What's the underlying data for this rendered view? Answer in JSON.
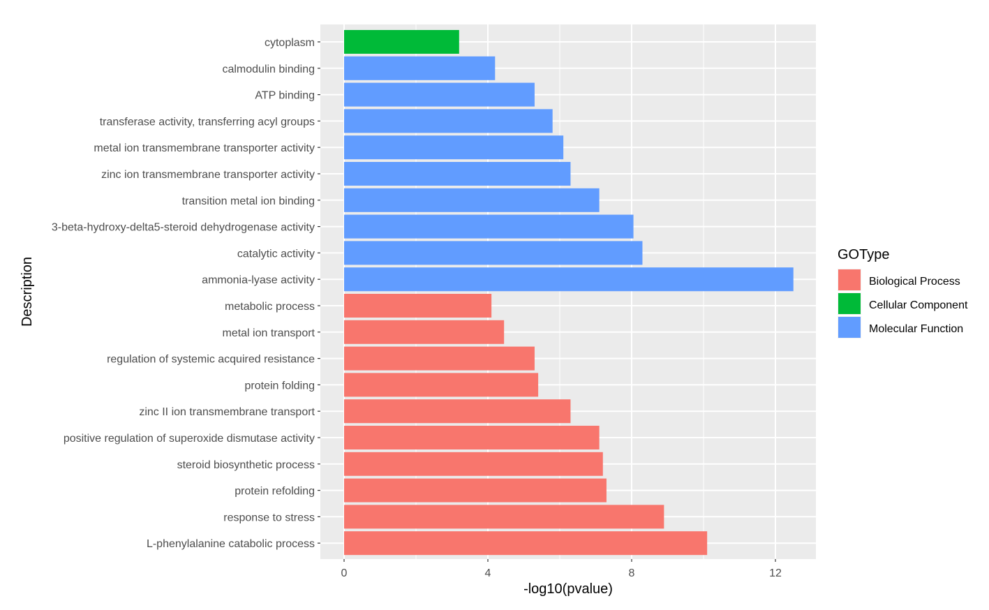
{
  "chart_data": {
    "type": "bar",
    "orientation": "horizontal",
    "xlabel": "-log10(pvalue)",
    "ylabel": "Description",
    "xlim": [
      -0.65,
      13.15
    ],
    "xticks": [
      0,
      4,
      8,
      12
    ],
    "xtick_labels": [
      "0",
      "4",
      "8",
      "12"
    ],
    "grid": true,
    "legend_position": "right",
    "legend": {
      "title": "GOType",
      "entries": [
        {
          "name": "Biological Process",
          "color": "#F8766D"
        },
        {
          "name": "Cellular Component",
          "color": "#00BA38"
        },
        {
          "name": "Molecular Function",
          "color": "#619CFF"
        }
      ]
    },
    "categories": [
      "cytoplasm",
      "calmodulin binding",
      "ATP binding",
      "transferase activity, transferring acyl groups",
      "metal ion transmembrane transporter activity",
      "zinc ion transmembrane transporter activity",
      "transition metal ion binding",
      "3-beta-hydroxy-delta5-steroid dehydrogenase activity",
      "catalytic activity",
      "ammonia-lyase activity",
      "metabolic process",
      "metal ion transport",
      "regulation of systemic acquired resistance",
      "protein folding",
      "zinc II ion transmembrane transport",
      "positive regulation of superoxide dismutase activity",
      "steroid biosynthetic process",
      "protein refolding",
      "response to stress",
      "L-phenylalanine catabolic process"
    ],
    "values": [
      3.2,
      4.2,
      5.3,
      5.8,
      6.1,
      6.3,
      7.1,
      8.05,
      8.3,
      12.5,
      4.1,
      4.45,
      5.3,
      5.4,
      6.3,
      7.1,
      7.2,
      7.3,
      8.9,
      10.1
    ],
    "groups": [
      "Cellular Component",
      "Molecular Function",
      "Molecular Function",
      "Molecular Function",
      "Molecular Function",
      "Molecular Function",
      "Molecular Function",
      "Molecular Function",
      "Molecular Function",
      "Molecular Function",
      "Biological Process",
      "Biological Process",
      "Biological Process",
      "Biological Process",
      "Biological Process",
      "Biological Process",
      "Biological Process",
      "Biological Process",
      "Biological Process",
      "Biological Process"
    ]
  },
  "colors": {
    "panel_background": "#EBEBEB",
    "gridline": "#FFFFFF",
    "tick": "#333333"
  }
}
